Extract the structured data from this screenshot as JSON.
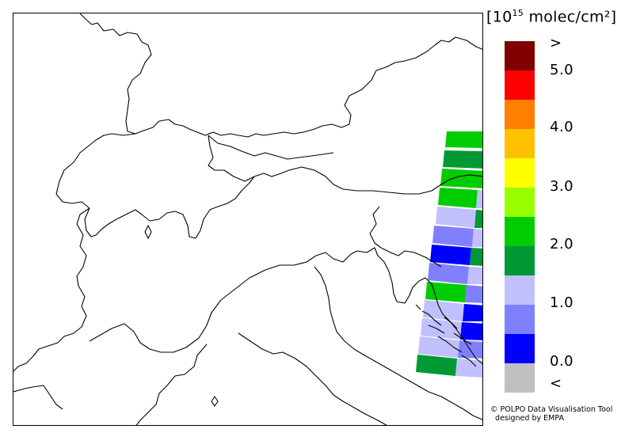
{
  "legend": {
    "units_prefix": "[10",
    "units_exp": "15",
    "units_suffix": " molec/cm²]",
    "ticks": [
      ">",
      "5.0",
      "4.0",
      "3.0",
      "2.0",
      "1.0",
      "0.0",
      "<"
    ],
    "colors": [
      "#800000",
      "#ff0000",
      "#ff8000",
      "#ffc000",
      "#ffff00",
      "#99ff00",
      "#00cc00",
      "#009933",
      "#c0c0ff",
      "#8080ff",
      "#0000ff",
      "#c0c0c0"
    ]
  },
  "credit": {
    "line1": "© POLPO Data Visualisation Tool",
    "line2": "  designed by EMPA"
  }
}
